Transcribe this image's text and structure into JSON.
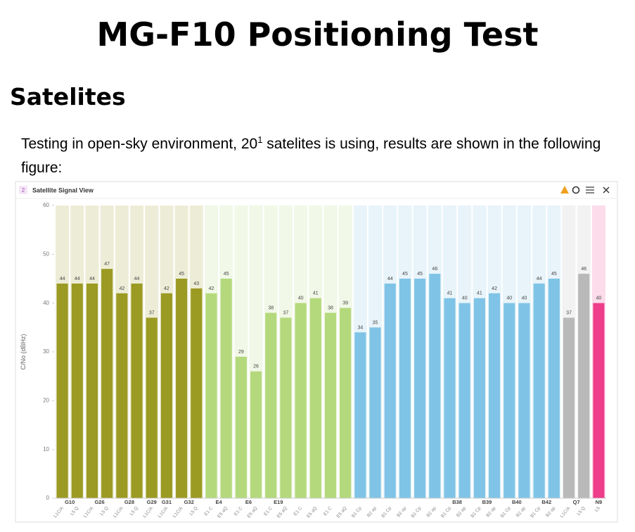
{
  "header": {
    "title": "MG-F10 Positioning Test"
  },
  "section": {
    "heading": "Satelites",
    "paragraph_before": "Testing in open-sky environment,  20",
    "paragraph_sup": "1",
    "paragraph_after": " satelites is using, results are shown in the following figure:"
  },
  "panel": {
    "index": "2",
    "title": "Satellite Signal View"
  },
  "chart_data": {
    "type": "bar",
    "ylabel": "C/No (dBHz)",
    "ylim": [
      0,
      60
    ],
    "yticks": [
      0,
      10,
      20,
      30,
      40,
      50,
      60
    ],
    "categories": [
      "L1C/A",
      "L5 Q",
      "L1C/A",
      "L5 Q",
      "L1C/A",
      "L5 Q",
      "L1C/A",
      "L1C/A",
      "L1C/A",
      "L5 Q",
      "E1 C",
      "E5 aQ",
      "E1 C",
      "E5 aQ",
      "E1 C",
      "E5 aQ",
      "E1 C",
      "E5 aQ",
      "E1 C",
      "E5 aQ",
      "B1 Cp",
      "B2 ap",
      "B1 Cp",
      "B2 ap",
      "B1 Cp",
      "B2 ap",
      "B1 Cp",
      "B2 ap",
      "B1 Cp",
      "B2 ap",
      "B1 Cp",
      "B2 ap",
      "B1 Cp",
      "B2 ap",
      "L1C/A",
      "L5 Q",
      "L5"
    ],
    "values": [
      44,
      44,
      44,
      47,
      42,
      44,
      37,
      42,
      45,
      43,
      42,
      45,
      29,
      26,
      38,
      37,
      40,
      41,
      38,
      39,
      34,
      35,
      44,
      45,
      45,
      46,
      41,
      40,
      41,
      42,
      40,
      40,
      44,
      45,
      37,
      46,
      40
    ],
    "groups": [
      {
        "label": "G10",
        "count": 2,
        "color": "#9b9a22"
      },
      {
        "label": "G26",
        "count": 2,
        "color": "#9b9a22"
      },
      {
        "label": "G28",
        "count": 2,
        "color": "#9b9a22"
      },
      {
        "label": "G29",
        "count": 1,
        "color": "#9b9a22"
      },
      {
        "label": "G31",
        "count": 1,
        "color": "#9b9a22"
      },
      {
        "label": "G32",
        "count": 2,
        "color": "#9b9a22"
      },
      {
        "label": "E4",
        "count": 2,
        "color": "#b4d97c"
      },
      {
        "label": "E6",
        "count": 2,
        "color": "#b4d97c"
      },
      {
        "label": "E19",
        "count": 2,
        "color": "#b4d97c"
      },
      {
        "label": null,
        "count": 2,
        "color": "#b4d97c"
      },
      {
        "label": null,
        "count": 2,
        "color": "#b4d97c"
      },
      {
        "label": null,
        "count": 2,
        "color": "#7fc4e6"
      },
      {
        "label": null,
        "count": 2,
        "color": "#7fc4e6"
      },
      {
        "label": null,
        "count": 2,
        "color": "#7fc4e6"
      },
      {
        "label": "B38",
        "count": 2,
        "color": "#7fc4e6"
      },
      {
        "label": "B39",
        "count": 2,
        "color": "#7fc4e6"
      },
      {
        "label": "B40",
        "count": 2,
        "color": "#7fc4e6"
      },
      {
        "label": "B42",
        "count": 2,
        "color": "#7fc4e6"
      },
      {
        "label": "Q7",
        "count": 2,
        "color": "#b9b9b9"
      },
      {
        "label": "N9",
        "count": 1,
        "color": "#ee3d8a"
      }
    ]
  }
}
